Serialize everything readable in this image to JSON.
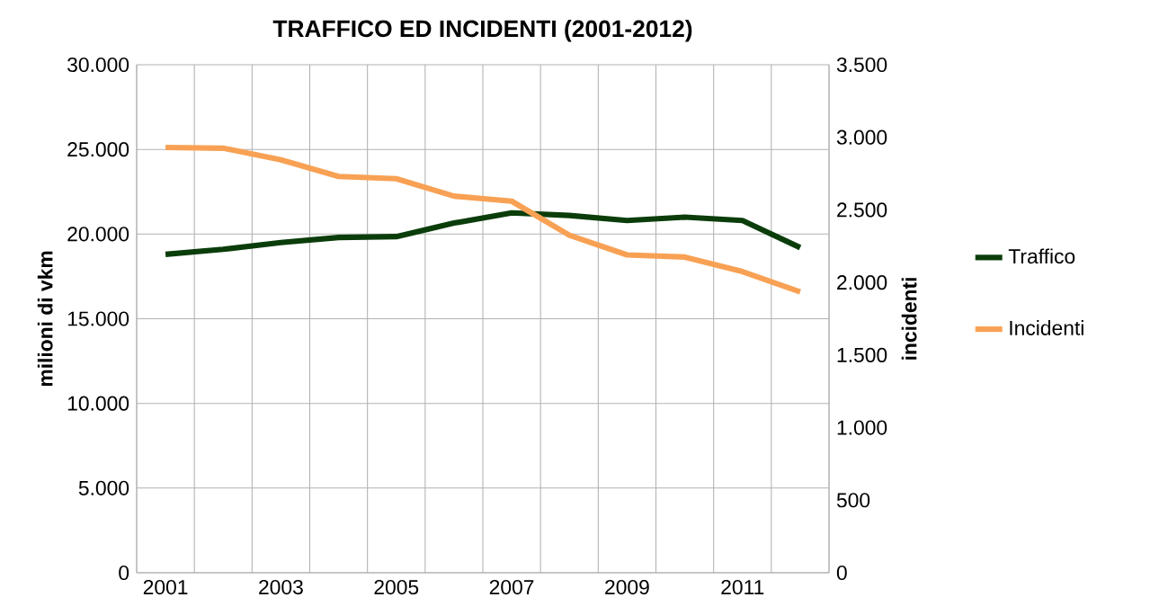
{
  "chart_data": {
    "type": "line",
    "title": "TRAFFICO ED INCIDENTI (2001-2012)",
    "ylabel": "milioni di vkm",
    "y2label": "incidenti",
    "categories": [
      "2001",
      null,
      "2003",
      null,
      "2005",
      null,
      "2007",
      null,
      "2009",
      null,
      "2011",
      null
    ],
    "series": [
      {
        "name": "Traffico",
        "color": "#0b3d0b",
        "values": [
          18800,
          19100,
          19500,
          19800,
          19850,
          20650,
          21250,
          21100,
          20800,
          21000,
          20800,
          19200
        ]
      },
      {
        "name": "Incidenti",
        "color": "#f8a154",
        "axis": "y2",
        "values": [
          2930,
          2925,
          2845,
          2730,
          2715,
          2595,
          2560,
          2325,
          2190,
          2175,
          2075,
          1935
        ]
      }
    ],
    "ylim": [
      0,
      30000
    ],
    "yticks": [
      0,
      {
        "value": 5000,
        "label": "5.000"
      },
      {
        "value": 10000,
        "label": "10.000"
      },
      {
        "value": 15000,
        "label": "15.000"
      },
      {
        "value": 20000,
        "label": "20.000"
      },
      {
        "value": 25000,
        "label": "25.000"
      },
      {
        "value": 30000,
        "label": "30.000"
      }
    ],
    "y2lim": [
      0,
      3500
    ],
    "y2ticks": [
      0,
      500,
      {
        "value": 1000,
        "label": "1.000"
      },
      {
        "value": 1500,
        "label": "1.500"
      },
      {
        "value": 2000,
        "label": "2.000"
      },
      {
        "value": 2500,
        "label": "2.500"
      },
      {
        "value": 3000,
        "label": "3.000"
      },
      {
        "value": 3500,
        "label": "3.500"
      }
    ],
    "grid": true,
    "legend": "right",
    "marker": "none",
    "line_style": "solid"
  }
}
